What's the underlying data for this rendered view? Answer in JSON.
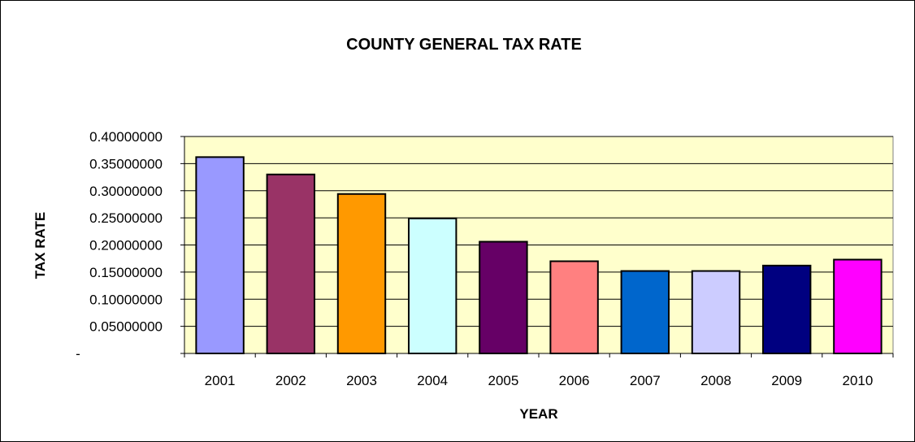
{
  "chart_data": {
    "type": "bar",
    "title": "COUNTY GENERAL TAX RATE",
    "xlabel": "YEAR",
    "ylabel": "TAX RATE",
    "categories": [
      "2001",
      "2002",
      "2003",
      "2004",
      "2005",
      "2006",
      "2007",
      "2008",
      "2009",
      "2010"
    ],
    "values": [
      0.362,
      0.33,
      0.294,
      0.249,
      0.206,
      0.17,
      0.152,
      0.152,
      0.162,
      0.173
    ],
    "bar_colors": [
      "#9999FF",
      "#993366",
      "#FF9900",
      "#CCFFFF",
      "#660066",
      "#FF8080",
      "#0066CC",
      "#CCCCFF",
      "#000080",
      "#FF00FF"
    ],
    "ylim": [
      0,
      0.4
    ],
    "yticks": [
      0,
      0.05,
      0.1,
      0.15,
      0.2,
      0.25,
      0.3,
      0.35,
      0.4
    ],
    "ytick_labels": [
      "-",
      "0.05000000",
      "0.10000000",
      "0.15000000",
      "0.20000000",
      "0.25000000",
      "0.30000000",
      "0.35000000",
      "0.40000000"
    ],
    "grid": true,
    "plot_background": "#FFFFCC",
    "legend": "none"
  }
}
